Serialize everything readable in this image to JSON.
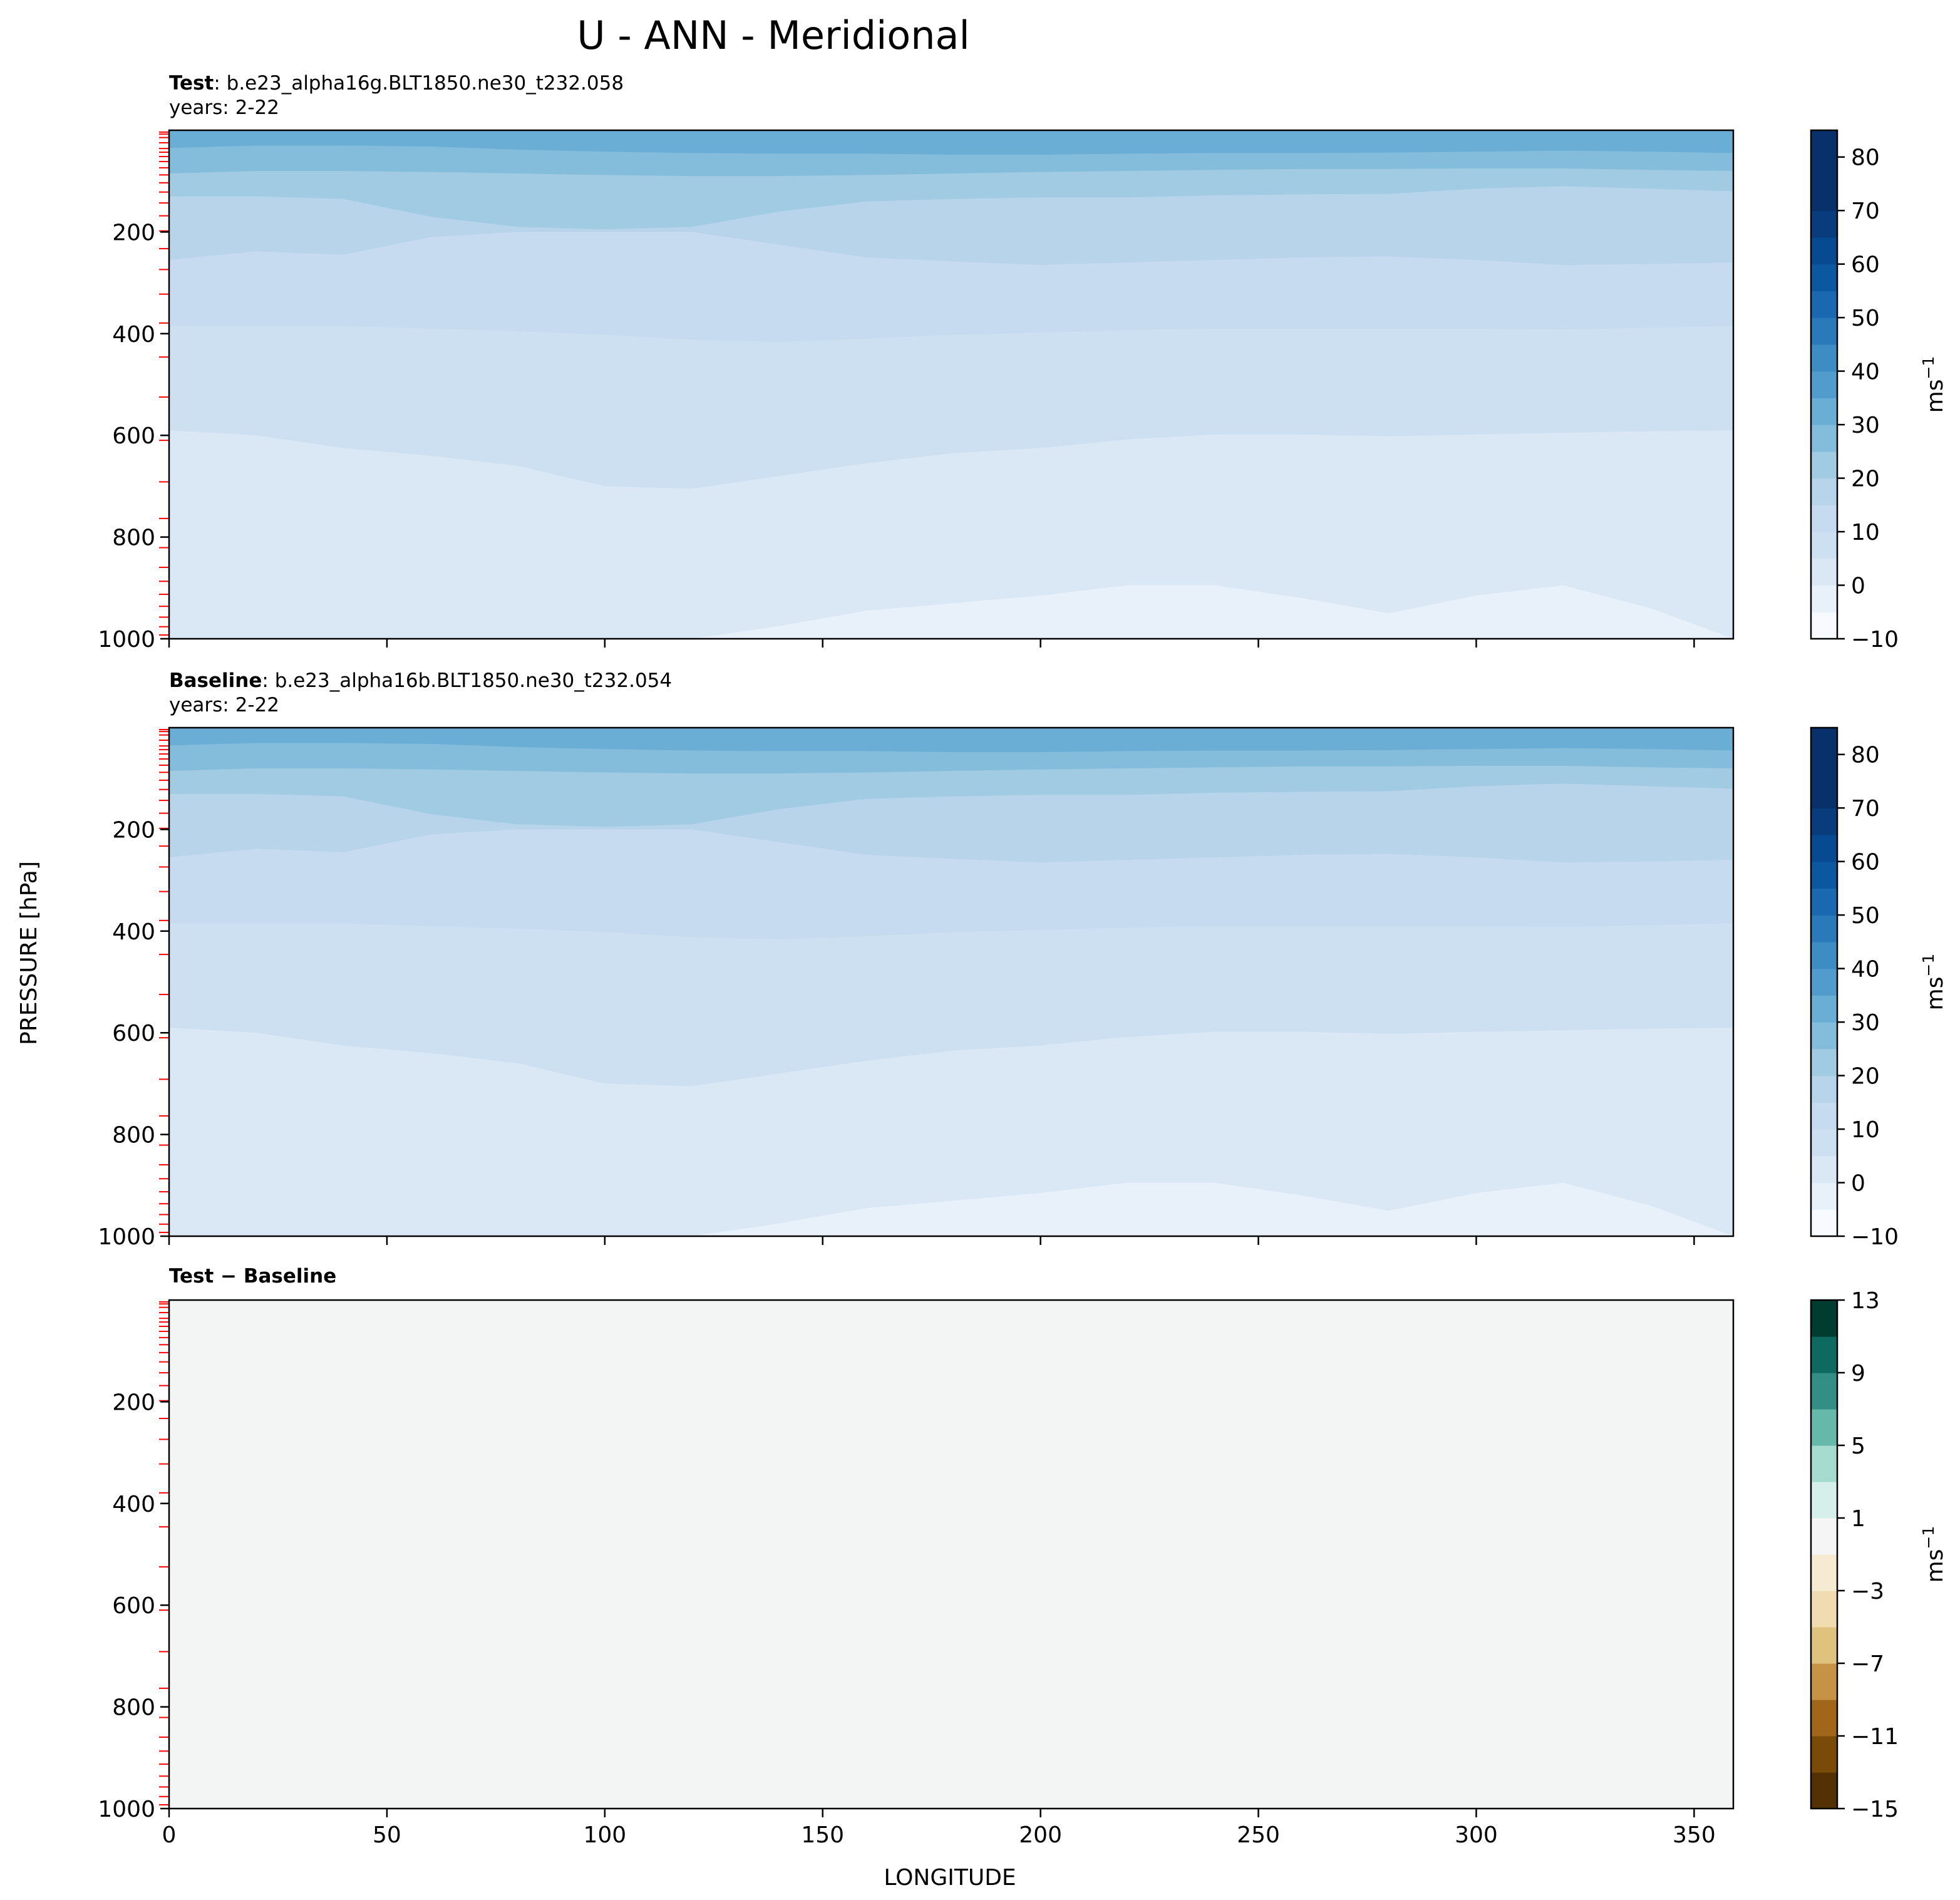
{
  "figure": {
    "suptitle": "U - ANN - Meridional",
    "xlabel": "LONGITUDE",
    "ylabel": "PRESSURE [hPa]"
  },
  "chart_data": [
    {
      "type": "heatmap",
      "panel": "test",
      "title_bold": "Test",
      "title_sep": ": ",
      "title_case": "b.e23_alpha16g.BLT1850.ne30_t232.058",
      "title_years": "years: 2-22",
      "xlim": [
        0,
        359
      ],
      "ylim": [
        1000,
        0
      ],
      "x_ticks": [
        0,
        50,
        100,
        150,
        200,
        250,
        300,
        350
      ],
      "y_ticks": [
        200,
        400,
        600,
        800,
        1000
      ],
      "x_tick_labels_visible": false,
      "colorbar": {
        "colormap": "Blues",
        "levels": [
          -10,
          -5,
          0,
          5,
          10,
          15,
          20,
          25,
          30,
          35,
          40,
          45,
          50,
          55,
          60,
          65,
          70,
          75,
          80,
          85
        ],
        "tick_values": [
          -10,
          0,
          10,
          20,
          30,
          40,
          50,
          60,
          70,
          80
        ],
        "tick_labels": [
          "−10",
          "0",
          "10",
          "20",
          "30",
          "40",
          "50",
          "60",
          "70",
          "80"
        ],
        "label": "ms",
        "label_exp": "−1"
      },
      "field": {
        "x": [
          0,
          20,
          40,
          60,
          80,
          100,
          120,
          140,
          160,
          180,
          200,
          220,
          240,
          260,
          280,
          300,
          320,
          340,
          359
        ],
        "contours": [
          {
            "level": 0,
            "pressure": [
              1000,
              1000,
              1000,
              1000,
              1000,
              1000,
              1000,
              975,
              945,
              930,
              915,
              895,
              895,
              920,
              950,
              915,
              895,
              940,
              1000
            ]
          },
          {
            "level": 5,
            "pressure": [
              590,
              600,
              625,
              640,
              660,
              700,
              705,
              680,
              655,
              635,
              625,
              608,
              598,
              598,
              602,
              598,
              595,
              592,
              590
            ]
          },
          {
            "level": 10,
            "pressure": [
              385,
              385,
              385,
              390,
              395,
              402,
              412,
              416,
              410,
              402,
              398,
              393,
              390,
              390,
              390,
              390,
              392,
              388,
              385
            ]
          },
          {
            "level": 15,
            "pressure": [
              255,
              238,
              245,
              210,
              200,
              200,
              200,
              225,
              250,
              258,
              265,
              260,
              255,
              250,
              248,
              255,
              265,
              263,
              260
            ]
          },
          {
            "level": 20,
            "pressure": [
              130,
              130,
              135,
              170,
              190,
              195,
              190,
              160,
              140,
              135,
              132,
              132,
              128,
              126,
              125,
              115,
              110,
              115,
              120
            ]
          },
          {
            "level": 25,
            "pressure": [
              85,
              80,
              80,
              82,
              85,
              88,
              90,
              90,
              88,
              85,
              82,
              80,
              78,
              76,
              76,
              75,
              75,
              78,
              80
            ]
          },
          {
            "level": 30,
            "pressure": [
              35,
              30,
              30,
              32,
              38,
              42,
              45,
              46,
              46,
              48,
              48,
              46,
              45,
              45,
              44,
              42,
              40,
              42,
              45
            ]
          }
        ]
      },
      "model_levels": [
        3.64,
        7.59,
        14.36,
        24.61,
        35.92,
        43.19,
        51.68,
        61.52,
        73.75,
        87.82,
        103.32,
        121.55,
        142.99,
        168.23,
        197.91,
        232.83,
        273.91,
        322.24,
        379.1,
        445.99,
        524.69,
        609.78,
        691.39,
        763.4,
        820.86,
        859.53,
        887.02,
        912.64,
        936.2,
        957.49,
        976.33,
        992.56
      ]
    },
    {
      "type": "heatmap",
      "panel": "baseline",
      "title_bold": "Baseline",
      "title_sep": ": ",
      "title_case": "b.e23_alpha16b.BLT1850.ne30_t232.054",
      "title_years": "years: 2-22",
      "xlim": [
        0,
        359
      ],
      "ylim": [
        1000,
        0
      ],
      "x_ticks": [
        0,
        50,
        100,
        150,
        200,
        250,
        300,
        350
      ],
      "y_ticks": [
        200,
        400,
        600,
        800,
        1000
      ],
      "x_tick_labels_visible": false,
      "colorbar": {
        "colormap": "Blues",
        "levels": [
          -10,
          -5,
          0,
          5,
          10,
          15,
          20,
          25,
          30,
          35,
          40,
          45,
          50,
          55,
          60,
          65,
          70,
          75,
          80,
          85
        ],
        "tick_values": [
          -10,
          0,
          10,
          20,
          30,
          40,
          50,
          60,
          70,
          80
        ],
        "tick_labels": [
          "−10",
          "0",
          "10",
          "20",
          "30",
          "40",
          "50",
          "60",
          "70",
          "80"
        ],
        "label": "ms",
        "label_exp": "−1"
      },
      "field": {
        "x": [
          0,
          20,
          40,
          60,
          80,
          100,
          120,
          140,
          160,
          180,
          200,
          220,
          240,
          260,
          280,
          300,
          320,
          340,
          359
        ],
        "contours": [
          {
            "level": 0,
            "pressure": [
              1000,
              1000,
              1000,
              1000,
              1000,
              1000,
              1000,
              975,
              945,
              930,
              915,
              895,
              895,
              920,
              950,
              915,
              895,
              940,
              1000
            ]
          },
          {
            "level": 5,
            "pressure": [
              590,
              600,
              625,
              640,
              660,
              700,
              705,
              680,
              655,
              635,
              625,
              608,
              598,
              598,
              602,
              598,
              595,
              592,
              590
            ]
          },
          {
            "level": 10,
            "pressure": [
              385,
              385,
              385,
              390,
              395,
              402,
              412,
              416,
              410,
              402,
              398,
              393,
              390,
              390,
              390,
              390,
              392,
              388,
              385
            ]
          },
          {
            "level": 15,
            "pressure": [
              255,
              238,
              245,
              210,
              200,
              200,
              200,
              225,
              250,
              258,
              265,
              260,
              255,
              250,
              248,
              255,
              265,
              263,
              260
            ]
          },
          {
            "level": 20,
            "pressure": [
              130,
              130,
              135,
              170,
              190,
              195,
              190,
              160,
              140,
              135,
              132,
              132,
              128,
              126,
              125,
              115,
              110,
              115,
              120
            ]
          },
          {
            "level": 25,
            "pressure": [
              85,
              80,
              80,
              82,
              85,
              88,
              90,
              90,
              88,
              85,
              82,
              80,
              78,
              76,
              76,
              75,
              75,
              78,
              80
            ]
          },
          {
            "level": 30,
            "pressure": [
              35,
              30,
              30,
              32,
              38,
              42,
              45,
              46,
              46,
              48,
              48,
              46,
              45,
              45,
              44,
              42,
              40,
              42,
              45
            ]
          }
        ]
      },
      "model_levels": [
        3.64,
        7.59,
        14.36,
        24.61,
        35.92,
        43.19,
        51.68,
        61.52,
        73.75,
        87.82,
        103.32,
        121.55,
        142.99,
        168.23,
        197.91,
        232.83,
        273.91,
        322.24,
        379.1,
        445.99,
        524.69,
        609.78,
        691.39,
        763.4,
        820.86,
        859.53,
        887.02,
        912.64,
        936.2,
        957.49,
        976.33,
        992.56
      ]
    },
    {
      "type": "heatmap",
      "panel": "difference",
      "title_bold": "Test − Baseline",
      "xlim": [
        0,
        359
      ],
      "ylim": [
        1000,
        0
      ],
      "x_ticks": [
        0,
        50,
        100,
        150,
        200,
        250,
        300,
        350
      ],
      "x_tick_labels": [
        "0",
        "50",
        "100",
        "150",
        "200",
        "250",
        "300",
        "350"
      ],
      "y_ticks": [
        200,
        400,
        600,
        800,
        1000
      ],
      "x_tick_labels_visible": true,
      "uniform_value": 0,
      "colorbar": {
        "colormap": "BrBG",
        "levels": [
          -15,
          -13,
          -11,
          -9,
          -7,
          -5,
          -3,
          -1,
          1,
          3,
          5,
          7,
          9,
          11,
          13
        ],
        "tick_values": [
          -15,
          -11,
          -7,
          -3,
          1,
          5,
          9,
          13
        ],
        "tick_labels": [
          "−15",
          "−11",
          "−7",
          "−3",
          "1",
          "5",
          "9",
          "13"
        ],
        "label": "ms",
        "label_exp": "−1"
      },
      "model_levels": [
        3.64,
        7.59,
        14.36,
        24.61,
        35.92,
        43.19,
        51.68,
        61.52,
        73.75,
        87.82,
        103.32,
        121.55,
        142.99,
        168.23,
        197.91,
        232.83,
        273.91,
        322.24,
        379.1,
        445.99,
        524.69,
        609.78,
        691.39,
        763.4,
        820.86,
        859.53,
        887.02,
        912.64,
        936.2,
        957.49,
        976.33,
        992.56
      ]
    }
  ],
  "colors": {
    "blues": [
      "#f7fbff",
      "#e8f1fa",
      "#dae8f6",
      "#cde0f1",
      "#c6dbef",
      "#b7d4ea",
      "#a0cbe2",
      "#84bcdb",
      "#6aaed6",
      "#519ccc",
      "#3d8dc4",
      "#2a7ab9",
      "#1a69b0",
      "#0b58a0",
      "#084a91",
      "#083c7d",
      "#08306b",
      "#08306b",
      "#08306b"
    ],
    "brbg": [
      "#543005",
      "#7a4a09",
      "#a1661a",
      "#c69346",
      "#dfc27d",
      "#f0dcb0",
      "#f6ebd2",
      "#f5f5f5",
      "#d6efea",
      "#a6dbd0",
      "#66b9aa",
      "#338e85",
      "#0e6a60",
      "#003c30"
    ],
    "difference_fill": "#f3f5f4",
    "model_level_tick": "#ff0000"
  }
}
